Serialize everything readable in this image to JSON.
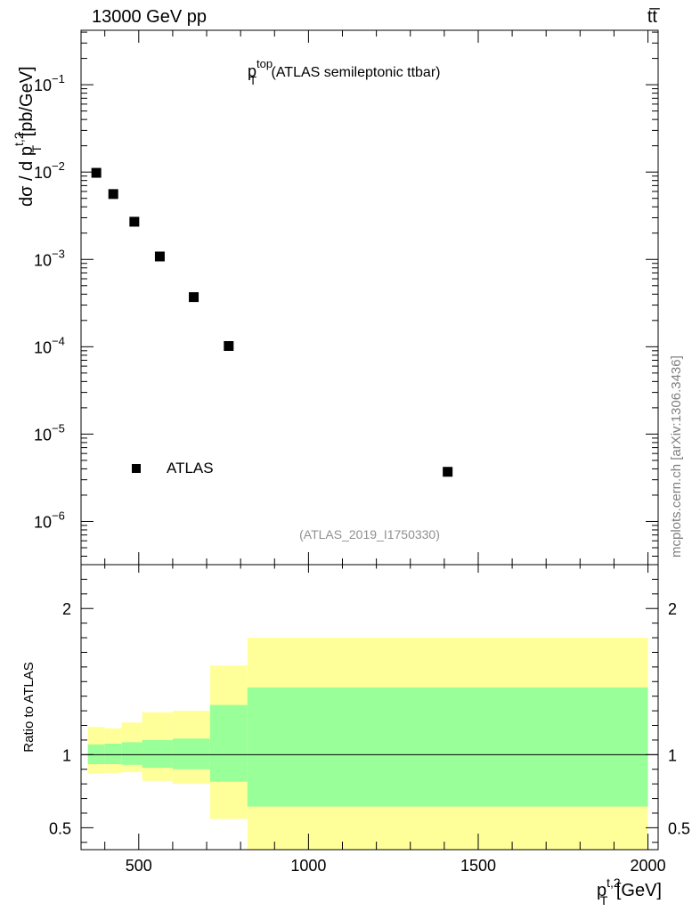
{
  "header": {
    "energy_label": "13000 GeV pp",
    "process_label": "tt̅"
  },
  "side_label": "mcplots.cern.ch [arXiv:1306.3436]",
  "colors": {
    "inner_band": "#99ff99",
    "outer_band": "#ffff99",
    "marker": "#000000"
  },
  "chart_data": [
    {
      "type": "scatter",
      "title": {
        "main": "p",
        "sup": "top",
        "sub": "T",
        "rest": " (ATLAS semileptonic ttbar)"
      },
      "ylabel": {
        "prefix": "dσ / d p",
        "sup": "t,2",
        "sub": "T",
        "suffix": " [pb/GeV]"
      },
      "yscale": "log",
      "ylim": [
        3.2e-07,
        0.42
      ],
      "xlim": [
        330,
        2030
      ],
      "y_ticks": [
        {
          "value": 0.1,
          "label": "10",
          "exp": "−1"
        },
        {
          "value": 0.01,
          "label": "10",
          "exp": "−2"
        },
        {
          "value": 0.001,
          "label": "10",
          "exp": "−3"
        },
        {
          "value": 0.0001,
          "label": "10",
          "exp": "−4"
        },
        {
          "value": 1e-05,
          "label": "10",
          "exp": "−5"
        },
        {
          "value": 1e-06,
          "label": "10",
          "exp": "−6"
        }
      ],
      "series": [
        {
          "name": "ATLAS",
          "marker": "square",
          "x": [
            375,
            425,
            487,
            562,
            662,
            765,
            1410
          ],
          "y": [
            0.0098,
            0.0056,
            0.0027,
            0.00108,
            0.00037,
            0.000102,
            3.7e-06
          ]
        }
      ],
      "legend": {
        "location": "lower-left",
        "entries": [
          "ATLAS"
        ]
      },
      "watermark": "(ATLAS_2019_I1750330)"
    },
    {
      "type": "area",
      "ylabel": "Ratio to ATLAS",
      "xlabel": {
        "prefix": "p",
        "sup": "t,2",
        "sub": "T",
        "suffix": " [GeV]"
      },
      "xlim": [
        330,
        2030
      ],
      "ylim": [
        0.35,
        2.3
      ],
      "x_ticks": [
        {
          "value": 500,
          "label": "500"
        },
        {
          "value": 1000,
          "label": "1000"
        },
        {
          "value": 1500,
          "label": "1500"
        },
        {
          "value": 2000,
          "label": "2000"
        }
      ],
      "y_ticks": [
        {
          "value": 0.5,
          "label": "0.5"
        },
        {
          "value": 1,
          "label": "1"
        },
        {
          "value": 2,
          "label": "2"
        }
      ],
      "reference_line": 1.0,
      "bins": [
        {
          "x0": 350,
          "x1": 400,
          "inner": [
            0.935,
            1.07
          ],
          "outer": [
            0.87,
            1.19
          ]
        },
        {
          "x0": 400,
          "x1": 450,
          "inner": [
            0.935,
            1.075
          ],
          "outer": [
            0.875,
            1.18
          ]
        },
        {
          "x0": 450,
          "x1": 510,
          "inner": [
            0.93,
            1.085
          ],
          "outer": [
            0.88,
            1.22
          ]
        },
        {
          "x0": 510,
          "x1": 600,
          "inner": [
            0.91,
            1.1
          ],
          "outer": [
            0.82,
            1.29
          ]
        },
        {
          "x0": 600,
          "x1": 710,
          "inner": [
            0.9,
            1.11
          ],
          "outer": [
            0.8,
            1.3
          ]
        },
        {
          "x0": 710,
          "x1": 820,
          "inner": [
            0.815,
            1.34
          ],
          "outer": [
            0.56,
            1.61
          ]
        },
        {
          "x0": 820,
          "x1": 2000,
          "inner": [
            0.645,
            1.46
          ],
          "outer": [
            0.35,
            1.8
          ]
        }
      ]
    }
  ]
}
